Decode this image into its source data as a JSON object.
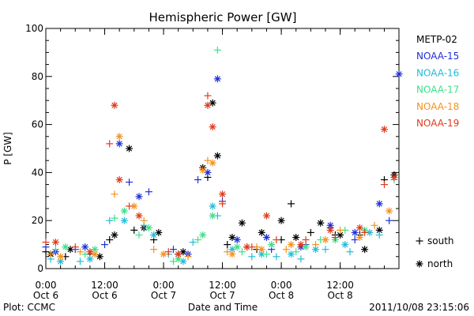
{
  "chart_data": {
    "type": "scatter",
    "title": "Hemispheric Power [GW]",
    "xlabel": "Date and Time",
    "ylabel": "P [GW]",
    "ylim": [
      0,
      100
    ],
    "yticks": [
      0,
      20,
      40,
      60,
      80,
      100
    ],
    "xlim": [
      "2011-10-06 00:00",
      "2011-10-08 23:59"
    ],
    "xticks": [
      {
        "time": "2011-10-06 00:00",
        "label1": "0:00",
        "label2": "Oct 6"
      },
      {
        "time": "2011-10-06 12:00",
        "label1": "12:00",
        "label2": "Oct 6"
      },
      {
        "time": "2011-10-07 00:00",
        "label1": "0:00",
        "label2": "Oct 7"
      },
      {
        "time": "2011-10-07 12:00",
        "label1": "12:00",
        "label2": "Oct 7"
      },
      {
        "time": "2011-10-08 00:00",
        "label1": "0:00",
        "label2": "Oct 8"
      },
      {
        "time": "2011-10-08 12:00",
        "label1": "12:00",
        "label2": "Oct 8"
      }
    ],
    "legend_placement": "right",
    "marker_legend": [
      {
        "symbol": "+",
        "label": "south"
      },
      {
        "symbol": "*",
        "label": "north"
      }
    ],
    "series": [
      {
        "name": "METP-02",
        "color": "#000000",
        "south": [
          [
            "2011-10-06 00:00",
            7
          ],
          [
            "2011-10-06 04:00",
            5
          ],
          [
            "2011-10-06 09:00",
            6
          ],
          [
            "2011-10-06 13:00",
            12
          ],
          [
            "2011-10-06 18:00",
            16
          ],
          [
            "2011-10-06 22:00",
            12
          ],
          [
            "2011-10-07 03:00",
            6
          ],
          [
            "2011-10-07 09:00",
            38
          ],
          [
            "2011-10-07 13:00",
            10
          ],
          [
            "2011-10-07 19:00",
            8
          ],
          [
            "2011-10-08 00:00",
            12
          ],
          [
            "2011-10-08 02:00",
            27
          ],
          [
            "2011-10-08 06:00",
            15
          ],
          [
            "2011-10-08 11:00",
            14
          ],
          [
            "2011-10-08 16:00",
            14
          ],
          [
            "2011-10-08 21:00",
            37
          ]
        ],
        "north": [
          [
            "2011-10-06 01:00",
            6
          ],
          [
            "2011-10-06 05:00",
            8
          ],
          [
            "2011-10-06 11:00",
            5
          ],
          [
            "2011-10-06 14:00",
            14
          ],
          [
            "2011-10-06 17:00",
            50
          ],
          [
            "2011-10-06 20:00",
            17
          ],
          [
            "2011-10-06 23:00",
            15
          ],
          [
            "2011-10-07 04:00",
            7
          ],
          [
            "2011-10-07 08:00",
            42
          ],
          [
            "2011-10-07 10:00",
            69
          ],
          [
            "2011-10-07 11:00",
            47
          ],
          [
            "2011-10-07 14:00",
            13
          ],
          [
            "2011-10-07 16:00",
            19
          ],
          [
            "2011-10-07 20:00",
            15
          ],
          [
            "2011-10-08 00:00",
            20
          ],
          [
            "2011-10-08 03:00",
            13
          ],
          [
            "2011-10-08 08:00",
            19
          ],
          [
            "2011-10-08 12:00",
            14
          ],
          [
            "2011-10-08 17:00",
            8
          ],
          [
            "2011-10-08 20:00",
            16
          ],
          [
            "2011-10-08 23:00",
            39
          ]
        ]
      },
      {
        "name": "NOAA-15",
        "color": "#1f2fd6",
        "south": [
          [
            "2011-10-06 00:00",
            9
          ],
          [
            "2011-10-06 06:00",
            8
          ],
          [
            "2011-10-06 12:00",
            10
          ],
          [
            "2011-10-06 17:00",
            36
          ],
          [
            "2011-10-06 21:00",
            32
          ],
          [
            "2011-10-07 02:00",
            8
          ],
          [
            "2011-10-07 07:00",
            37
          ],
          [
            "2011-10-07 12:00",
            28
          ],
          [
            "2011-10-07 17:00",
            9
          ],
          [
            "2011-10-07 22:00",
            8
          ],
          [
            "2011-10-08 05:00",
            10
          ],
          [
            "2011-10-08 10:00",
            17
          ],
          [
            "2011-10-08 15:00",
            12
          ],
          [
            "2011-10-08 22:00",
            20
          ]
        ],
        "north": [
          [
            "2011-10-06 02:00",
            7
          ],
          [
            "2011-10-06 08:00",
            9
          ],
          [
            "2011-10-06 15:00",
            52
          ],
          [
            "2011-10-06 19:00",
            30
          ],
          [
            "2011-10-07 05:00",
            6
          ],
          [
            "2011-10-07 09:00",
            40
          ],
          [
            "2011-10-07 11:00",
            79
          ],
          [
            "2011-10-07 15:00",
            12
          ],
          [
            "2011-10-07 21:00",
            13
          ],
          [
            "2011-10-08 04:00",
            9
          ],
          [
            "2011-10-08 10:00",
            18
          ],
          [
            "2011-10-08 15:00",
            15
          ],
          [
            "2011-10-08 20:00",
            27
          ],
          [
            "2011-10-09 00:00",
            81
          ]
        ]
      },
      {
        "name": "NOAA-16",
        "color": "#22bcd9",
        "south": [
          [
            "2011-10-06 01:00",
            4
          ],
          [
            "2011-10-06 07:00",
            3
          ],
          [
            "2011-10-06 13:00",
            20
          ],
          [
            "2011-10-06 20:00",
            18
          ],
          [
            "2011-10-07 01:00",
            6
          ],
          [
            "2011-10-07 06:00",
            11
          ],
          [
            "2011-10-07 11:00",
            22
          ],
          [
            "2011-10-07 18:00",
            5
          ],
          [
            "2011-10-07 23:00",
            5
          ],
          [
            "2011-10-08 04:00",
            4
          ],
          [
            "2011-10-08 09:00",
            8
          ],
          [
            "2011-10-08 14:00",
            7
          ],
          [
            "2011-10-08 20:00",
            14
          ]
        ],
        "north": [
          [
            "2011-10-06 03:00",
            3
          ],
          [
            "2011-10-06 09:00",
            4
          ],
          [
            "2011-10-06 16:00",
            20
          ],
          [
            "2011-10-06 22:00",
            14
          ],
          [
            "2011-10-07 04:00",
            3
          ],
          [
            "2011-10-07 10:00",
            26
          ],
          [
            "2011-10-07 14:00",
            8
          ],
          [
            "2011-10-07 20:00",
            6
          ],
          [
            "2011-10-08 02:00",
            6
          ],
          [
            "2011-10-08 07:00",
            8
          ],
          [
            "2011-10-08 13:00",
            10
          ],
          [
            "2011-10-08 18:00",
            15
          ]
        ]
      },
      {
        "name": "NOAA-17",
        "color": "#3ce08a",
        "south": [
          [
            "2011-10-06 02:00",
            8
          ],
          [
            "2011-10-06 08:00",
            6
          ],
          [
            "2011-10-06 14:00",
            21
          ],
          [
            "2011-10-06 19:00",
            14
          ],
          [
            "2011-10-07 02:00",
            3
          ],
          [
            "2011-10-07 07:00",
            12
          ],
          [
            "2011-10-07 11:00",
            91
          ],
          [
            "2011-10-07 16:00",
            7
          ],
          [
            "2011-10-07 21:00",
            6
          ],
          [
            "2011-10-08 03:00",
            7
          ],
          [
            "2011-10-08 08:00",
            12
          ],
          [
            "2011-10-08 13:00",
            16
          ],
          [
            "2011-10-08 23:00",
            37
          ]
        ],
        "north": [
          [
            "2011-10-06 04:00",
            9
          ],
          [
            "2011-10-06 10:00",
            8
          ],
          [
            "2011-10-06 16:00",
            24
          ],
          [
            "2011-10-06 21:00",
            17
          ],
          [
            "2011-10-07 03:00",
            4
          ],
          [
            "2011-10-07 08:00",
            14
          ],
          [
            "2011-10-07 10:00",
            22
          ],
          [
            "2011-10-07 15:00",
            9
          ],
          [
            "2011-10-07 22:00",
            10
          ],
          [
            "2011-10-08 05:00",
            9
          ],
          [
            "2011-10-08 11:00",
            12
          ],
          [
            "2011-10-08 17:00",
            16
          ]
        ]
      },
      {
        "name": "NOAA-18",
        "color": "#f5921b",
        "south": [
          [
            "2011-10-06 01:00",
            6
          ],
          [
            "2011-10-06 07:00",
            7
          ],
          [
            "2011-10-06 14:00",
            31
          ],
          [
            "2011-10-06 20:00",
            20
          ],
          [
            "2011-10-06 22:00",
            8
          ],
          [
            "2011-10-07 05:00",
            5
          ],
          [
            "2011-10-07 09:00",
            45
          ],
          [
            "2011-10-07 13:00",
            7
          ],
          [
            "2011-10-07 19:00",
            9
          ],
          [
            "2011-10-08 01:00",
            8
          ],
          [
            "2011-10-08 07:00",
            10
          ],
          [
            "2011-10-08 12:00",
            16
          ],
          [
            "2011-10-08 19:00",
            18
          ]
        ],
        "north": [
          [
            "2011-10-06 03:00",
            5
          ],
          [
            "2011-10-06 10:00",
            6
          ],
          [
            "2011-10-06 15:00",
            55
          ],
          [
            "2011-10-06 18:00",
            26
          ],
          [
            "2011-10-07 00:00",
            6
          ],
          [
            "2011-10-07 08:00",
            41
          ],
          [
            "2011-10-07 10:00",
            44
          ],
          [
            "2011-10-07 14:00",
            6
          ],
          [
            "2011-10-07 20:00",
            8
          ],
          [
            "2011-10-08 02:00",
            10
          ],
          [
            "2011-10-08 09:00",
            12
          ],
          [
            "2011-10-08 16:00",
            13
          ],
          [
            "2011-10-08 22:00",
            24
          ]
        ]
      },
      {
        "name": "NOAA-19",
        "color": "#e03a1c",
        "south": [
          [
            "2011-10-06 00:00",
            11
          ],
          [
            "2011-10-06 06:00",
            9
          ],
          [
            "2011-10-06 13:00",
            52
          ],
          [
            "2011-10-06 17:00",
            26
          ],
          [
            "2011-10-07 01:00",
            7
          ],
          [
            "2011-10-07 09:00",
            72
          ],
          [
            "2011-10-07 12:00",
            27
          ],
          [
            "2011-10-07 18:00",
            9
          ],
          [
            "2011-10-07 23:00",
            12
          ],
          [
            "2011-10-08 05:00",
            12
          ],
          [
            "2011-10-08 11:00",
            13
          ],
          [
            "2011-10-08 17:00",
            15
          ],
          [
            "2011-10-08 21:00",
            35
          ]
        ],
        "north": [
          [
            "2011-10-06 02:00",
            11
          ],
          [
            "2011-10-06 09:00",
            7
          ],
          [
            "2011-10-06 14:00",
            68
          ],
          [
            "2011-10-06 15:00",
            37
          ],
          [
            "2011-10-06 19:00",
            22
          ],
          [
            "2011-10-07 03:00",
            6
          ],
          [
            "2011-10-07 09:00",
            68
          ],
          [
            "2011-10-07 10:00",
            59
          ],
          [
            "2011-10-07 12:00",
            31
          ],
          [
            "2011-10-07 17:00",
            9
          ],
          [
            "2011-10-07 21:00",
            22
          ],
          [
            "2011-10-08 04:00",
            10
          ],
          [
            "2011-10-08 10:00",
            16
          ],
          [
            "2011-10-08 16:00",
            17
          ],
          [
            "2011-10-08 21:00",
            58
          ],
          [
            "2011-10-08 23:00",
            38
          ]
        ]
      }
    ]
  },
  "footer": {
    "plot_credit": "Plot: CCMC",
    "timestamp": "2011/10/08 23:15:06"
  }
}
